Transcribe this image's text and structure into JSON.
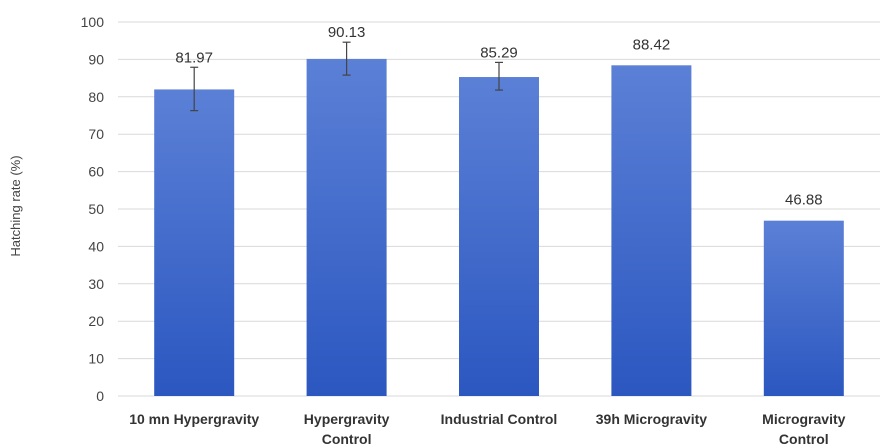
{
  "chart_data": {
    "type": "bar",
    "categories": [
      [
        "10 mn Hypergravity"
      ],
      [
        "Hypergravity",
        "Control"
      ],
      [
        "Industrial Control"
      ],
      [
        "39h  Microgravity"
      ],
      [
        "Microgravity",
        "Control"
      ]
    ],
    "values": [
      81.97,
      90.13,
      85.29,
      88.42,
      46.88
    ],
    "value_labels": [
      "81.97",
      "90.13",
      "85.29",
      "88.42",
      "46.88"
    ],
    "error_bars": [
      [
        76.3,
        87.9
      ],
      [
        85.8,
        94.6
      ],
      [
        81.8,
        89.2
      ],
      null,
      null
    ],
    "ylabel": "Hatching rate  (%)",
    "ylim": [
      0,
      100
    ],
    "yticks": [
      0,
      10,
      20,
      30,
      40,
      50,
      60,
      70,
      80,
      90,
      100
    ],
    "grid": true,
    "colors": {
      "bar_top": "#5b80d6",
      "bar_bottom": "#2b57c0",
      "grid": "#d9d9d9",
      "error": "#444444"
    }
  }
}
